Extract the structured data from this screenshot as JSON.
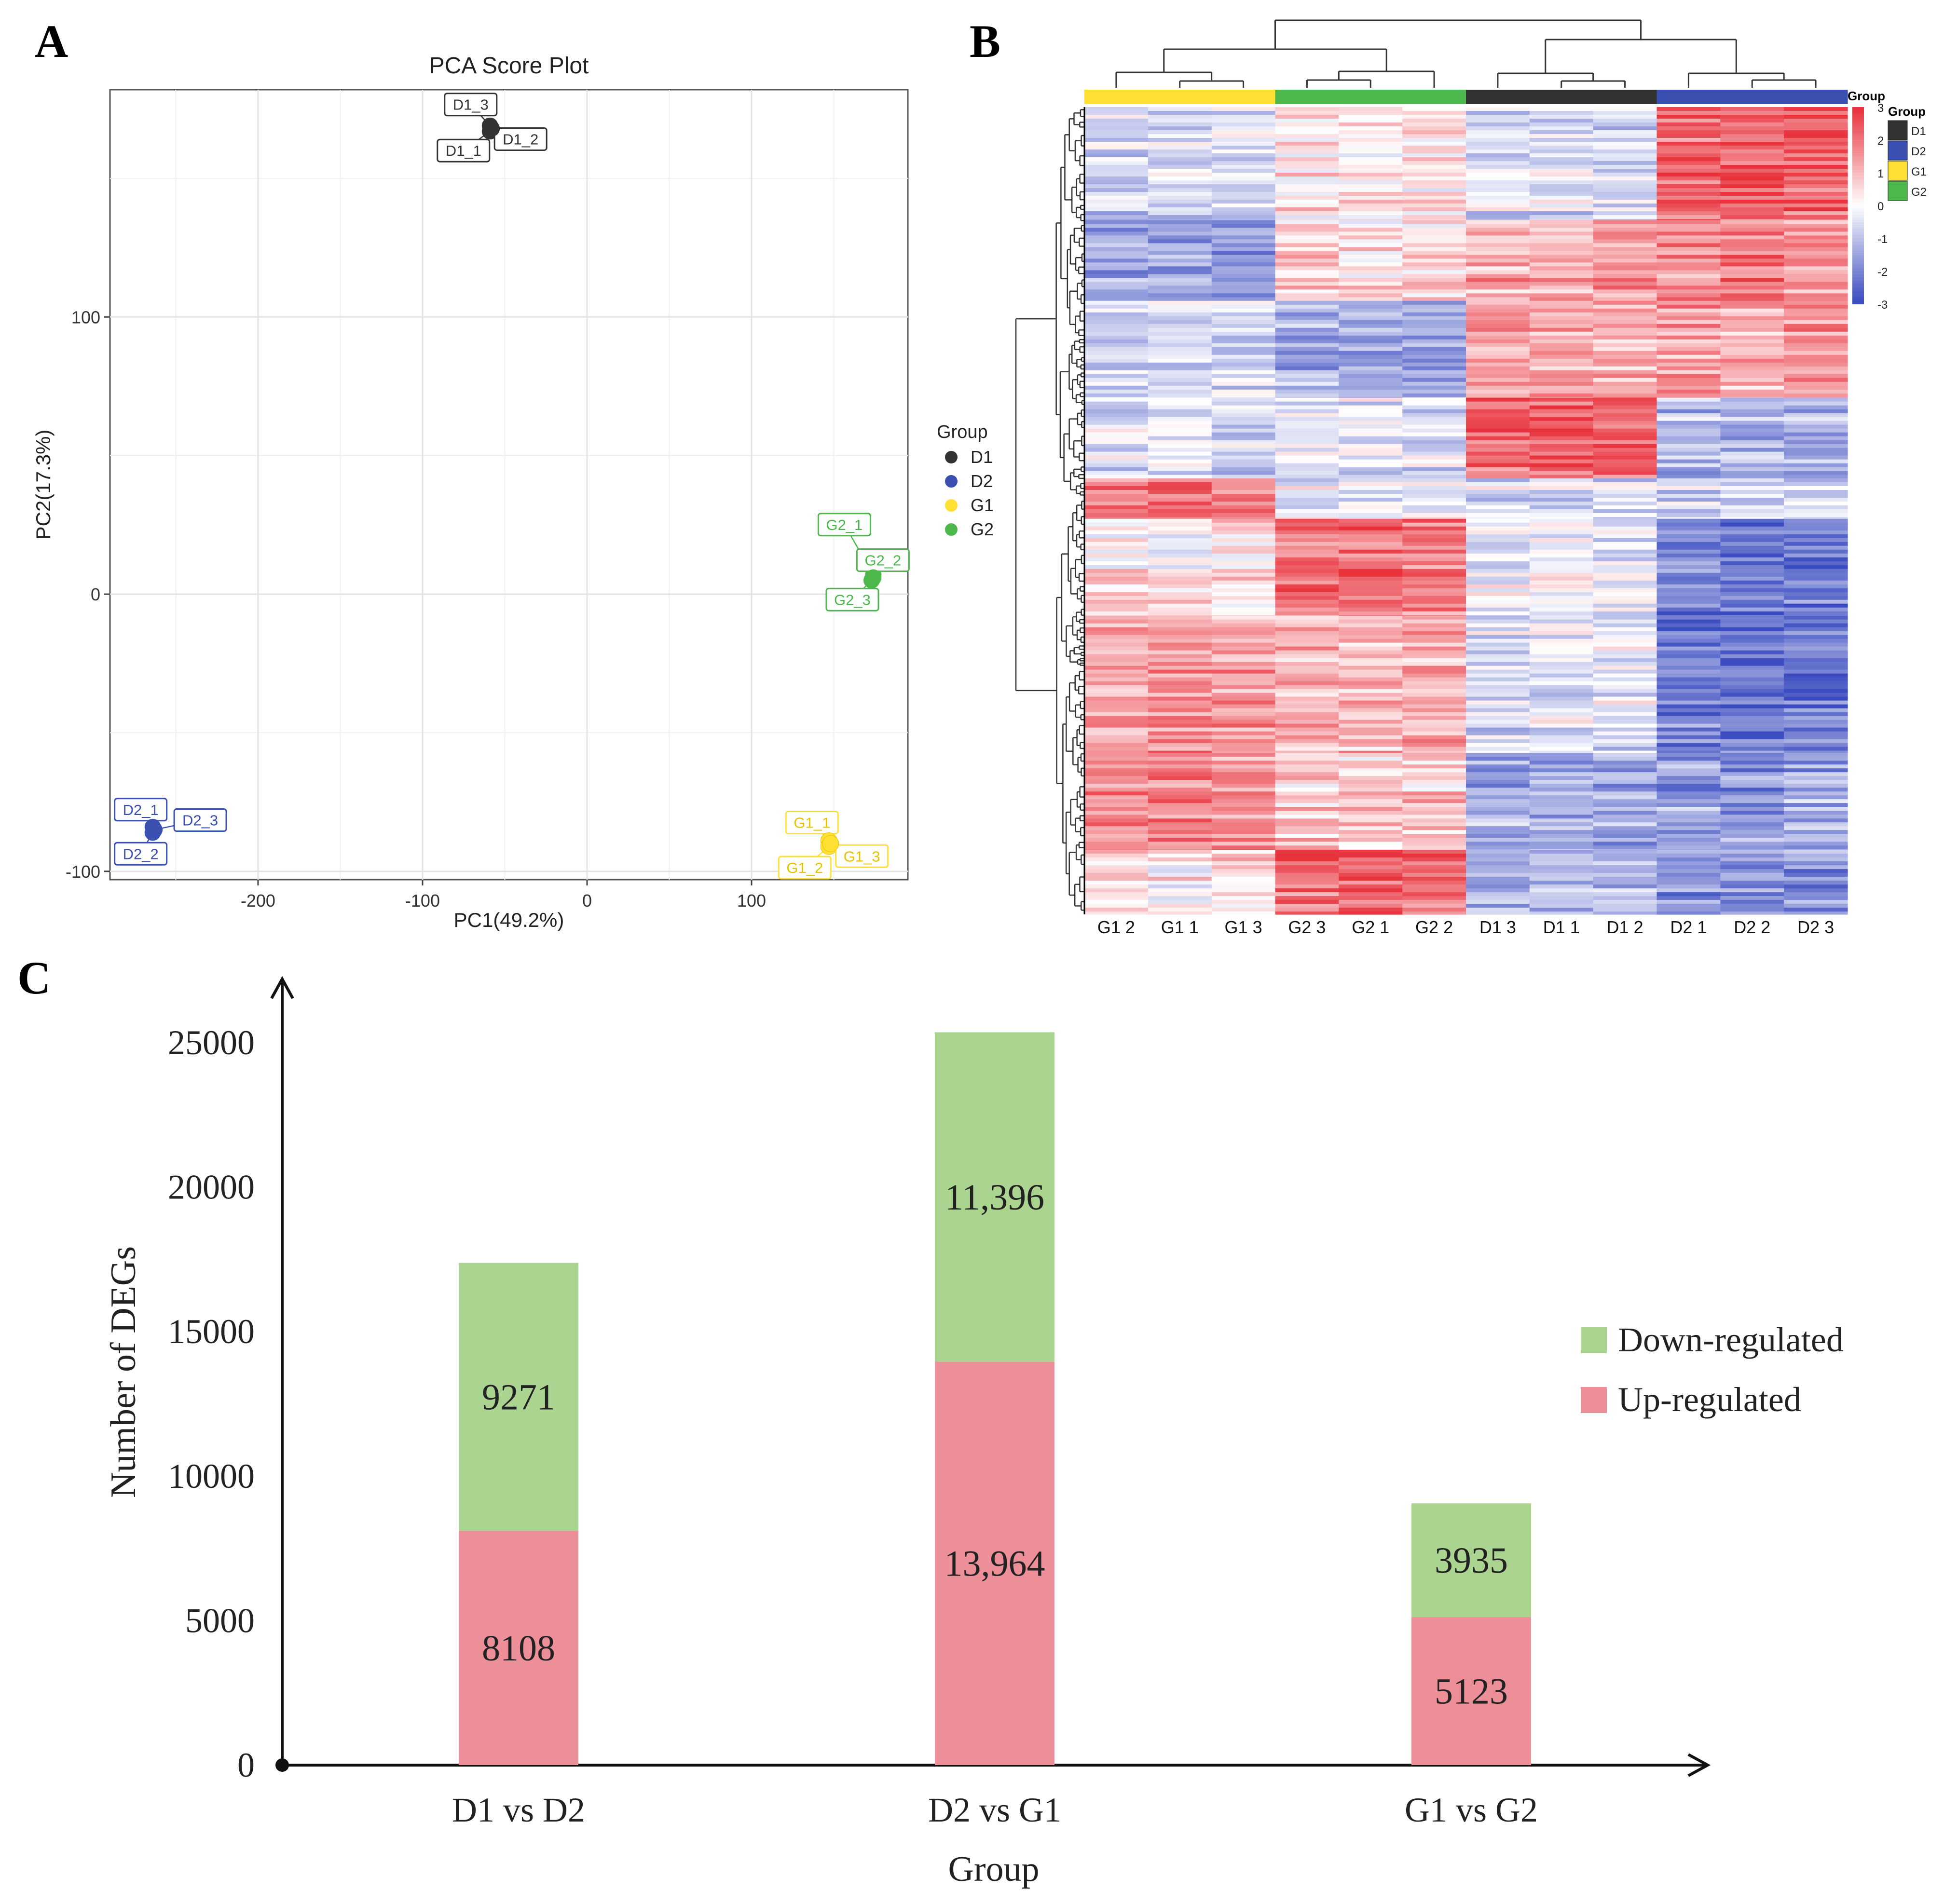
{
  "panel_labels": {
    "a": "A",
    "b": "B",
    "c": "C"
  },
  "colors": {
    "D1": "#333333",
    "D2": "#3a4fb0",
    "G1": "#ffe033",
    "G2": "#4cb84c",
    "heat_low": "#3b4cc0",
    "heat_mid": "#ffffff",
    "heat_high": "#e8323c",
    "down": "#aad490",
    "up": "#ec8f99"
  },
  "chart_data": [
    {
      "type": "scatter",
      "title": "PCA Score Plot",
      "xlabel": "PC1(49.2%)",
      "ylabel": "PC2(17.3%)",
      "xlim": [
        -290,
        195
      ],
      "ylim": [
        -103,
        182
      ],
      "xticks": [
        -200,
        -100,
        0,
        100
      ],
      "yticks": [
        -100,
        0,
        100
      ],
      "xtick_labels": [
        "-200",
        "-100",
        "0",
        "100"
      ],
      "ytick_labels": [
        "-100",
        "0",
        "100"
      ],
      "legend_title": "Group",
      "legend": [
        "D1",
        "D2",
        "G1",
        "G2"
      ],
      "points": [
        {
          "label": "D1_3",
          "group": "D1",
          "x": -59,
          "y": 169
        },
        {
          "label": "D1_1",
          "group": "D1",
          "x": -59,
          "y": 167
        },
        {
          "label": "D1_2",
          "group": "D1",
          "x": -58,
          "y": 168
        },
        {
          "label": "D2_1",
          "group": "D2",
          "x": -264,
          "y": -84
        },
        {
          "label": "D2_2",
          "group": "D2",
          "x": -264,
          "y": -86
        },
        {
          "label": "D2_3",
          "group": "D2",
          "x": -263,
          "y": -85
        },
        {
          "label": "G1_1",
          "group": "G1",
          "x": 147,
          "y": -89
        },
        {
          "label": "G1_2",
          "group": "G1",
          "x": 147,
          "y": -91
        },
        {
          "label": "G1_3",
          "group": "G1",
          "x": 148,
          "y": -90
        },
        {
          "label": "G2_1",
          "group": "G2",
          "x": 174,
          "y": 7
        },
        {
          "label": "G2_2",
          "group": "G2",
          "x": 174,
          "y": 6
        },
        {
          "label": "G2_3",
          "group": "G2",
          "x": 173,
          "y": 5
        }
      ]
    },
    {
      "type": "heatmap",
      "title": "",
      "columns": [
        "G1_2",
        "G1_1",
        "G1_3",
        "G2_3",
        "G2_1",
        "G2_2",
        "D1_3",
        "D1_1",
        "D1_2",
        "D2_1",
        "D2_2",
        "D2_3"
      ],
      "column_groups": [
        "G1",
        "G1",
        "G1",
        "G2",
        "G2",
        "G2",
        "D1",
        "D1",
        "D1",
        "D2",
        "D2",
        "D2"
      ],
      "column_labels": [
        "G1  2",
        "G1  1",
        "G1  3",
        "G2  3",
        "G2  1",
        "G2  2",
        "D1  3",
        "D1  1",
        "D1  2",
        "D2  1",
        "D2  2",
        "D2  3"
      ],
      "color_scale_title": "Group",
      "color_scale_range": [
        -3,
        3
      ],
      "color_scale_ticks": [
        "3",
        "2",
        "1",
        "0",
        "-1",
        "-2",
        "-3"
      ],
      "group_legend_title": "Group",
      "group_legend": [
        "D1",
        "D2",
        "G1",
        "G2"
      ],
      "row_blocks": [
        {
          "rows": 0.14,
          "values": [
            -0.6,
            -0.7,
            -0.6,
            0.3,
            0.2,
            0.4,
            -0.6,
            -0.5,
            -0.6,
            2.2,
            2.4,
            2.3
          ]
        },
        {
          "rows": 0.1,
          "values": [
            -1.6,
            -1.7,
            -1.8,
            0.6,
            0.4,
            0.5,
            1.2,
            1.0,
            1.3,
            1.6,
            1.8,
            1.5
          ]
        },
        {
          "rows": 0.12,
          "values": [
            -0.5,
            -0.7,
            -0.6,
            -1.4,
            -1.2,
            -1.5,
            1.3,
            1.4,
            1.2,
            1.5,
            1.3,
            1.6
          ]
        },
        {
          "rows": 0.1,
          "values": [
            -0.4,
            -0.3,
            -0.5,
            -0.3,
            -0.2,
            -0.4,
            2.3,
            2.5,
            2.4,
            -1.0,
            -1.2,
            -1.1
          ]
        },
        {
          "rows": 0.05,
          "values": [
            1.8,
            2.0,
            1.9,
            -0.4,
            -0.3,
            -0.5,
            -0.6,
            -0.7,
            -0.5,
            -0.8,
            -0.9,
            -0.7
          ]
        },
        {
          "rows": 0.12,
          "values": [
            0.3,
            0.2,
            0.4,
            1.9,
            2.1,
            2.0,
            -0.3,
            -0.2,
            -0.4,
            -2.0,
            -2.2,
            -2.1
          ]
        },
        {
          "rows": 0.17,
          "values": [
            1.4,
            1.5,
            1.3,
            1.2,
            1.0,
            1.1,
            -0.5,
            -0.3,
            -0.4,
            -2.2,
            -2.4,
            -2.3
          ]
        },
        {
          "rows": 0.12,
          "values": [
            1.6,
            1.7,
            1.5,
            0.8,
            0.6,
            0.7,
            -1.4,
            -1.5,
            -1.3,
            -1.6,
            -1.7,
            -1.5
          ]
        },
        {
          "rows": 0.08,
          "values": [
            0.4,
            0.3,
            0.5,
            2.0,
            2.2,
            2.1,
            -1.2,
            -1.3,
            -1.1,
            -1.8,
            -1.9,
            -1.7
          ]
        }
      ]
    },
    {
      "type": "bar",
      "stacked": true,
      "title": "",
      "xlabel": "Group",
      "ylabel": "Number of  DEGs",
      "categories": [
        "D1 vs D2",
        "D2 vs G1",
        "G1 vs G2"
      ],
      "ylim": [
        0,
        27000
      ],
      "yticks": [
        0,
        5000,
        10000,
        15000,
        20000,
        25000
      ],
      "ytick_labels": [
        "0",
        "5000",
        "10000",
        "15000",
        "20000",
        "25000"
      ],
      "series": [
        {
          "name": "Up-regulated",
          "values": [
            8108,
            13964,
            5123
          ],
          "labels": [
            "8108",
            "13,964",
            "5123"
          ]
        },
        {
          "name": "Down-regulated",
          "values": [
            9271,
            11396,
            3935
          ],
          "labels": [
            "9271",
            "11,396",
            "3935"
          ]
        }
      ],
      "legend": [
        "Down-regulated",
        "Up-regulated"
      ]
    }
  ]
}
